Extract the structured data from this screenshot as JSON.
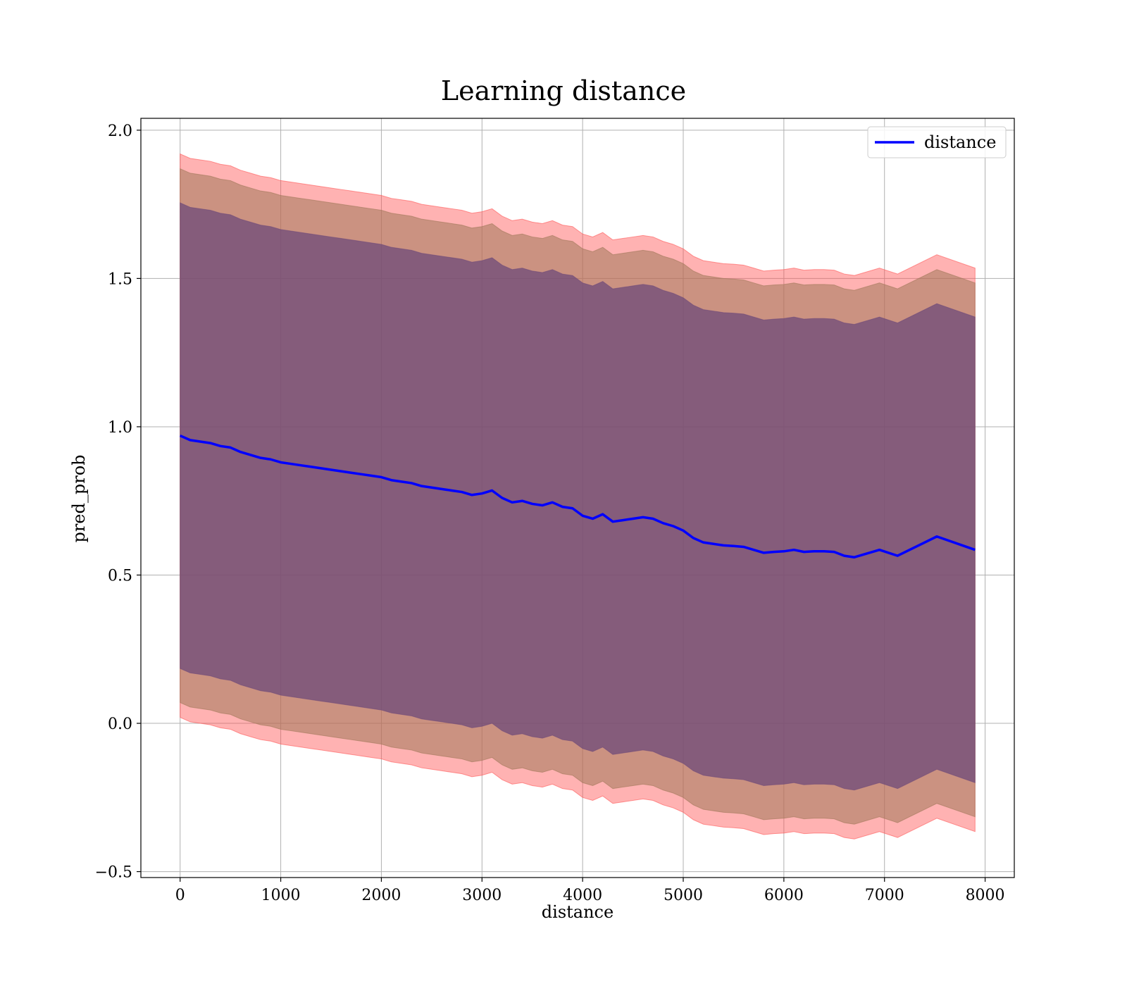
{
  "chart_data": {
    "type": "line",
    "title": "Learning distance",
    "xlabel": "distance",
    "ylabel": "pred_prob",
    "xlim": [
      -390,
      8290
    ],
    "ylim": [
      -0.52,
      2.04
    ],
    "xticks": [
      0,
      1000,
      2000,
      3000,
      4000,
      5000,
      6000,
      7000,
      8000
    ],
    "yticks": [
      -0.5,
      0.0,
      0.5,
      1.0,
      1.5,
      2.0
    ],
    "xtick_labels": [
      "0",
      "1000",
      "2000",
      "3000",
      "4000",
      "5000",
      "6000",
      "7000",
      "8000"
    ],
    "ytick_labels": [
      "−0.5",
      "0.0",
      "0.5",
      "1.0",
      "1.5",
      "2.0"
    ],
    "grid": true,
    "legend": {
      "position": "upper right",
      "entries": [
        "distance"
      ]
    },
    "colors": {
      "line": "#0000ff",
      "band_outer": "#ff5555",
      "band_middle": "#a0785a",
      "band_inner": "#6e4a7a"
    },
    "series": [
      {
        "name": "distance",
        "x": [
          0,
          100,
          200,
          300,
          400,
          500,
          600,
          700,
          800,
          900,
          1000,
          1100,
          1200,
          1300,
          1400,
          1500,
          1600,
          1700,
          1800,
          1900,
          2000,
          2100,
          2200,
          2300,
          2400,
          2500,
          2600,
          2700,
          2800,
          2900,
          3000,
          3100,
          3200,
          3300,
          3400,
          3500,
          3600,
          3700,
          3800,
          3900,
          4000,
          4100,
          4200,
          4300,
          4400,
          4500,
          4600,
          4700,
          4800,
          4900,
          5000,
          5100,
          5200,
          5300,
          5400,
          5500,
          5600,
          5700,
          5800,
          5900,
          6000,
          6100,
          6200,
          6300,
          6400,
          6500,
          6600,
          6700,
          6950,
          7130,
          7520,
          7900
        ],
        "y": [
          0.97,
          0.955,
          0.95,
          0.945,
          0.935,
          0.93,
          0.915,
          0.905,
          0.895,
          0.89,
          0.88,
          0.875,
          0.87,
          0.865,
          0.86,
          0.855,
          0.85,
          0.845,
          0.84,
          0.835,
          0.83,
          0.82,
          0.815,
          0.81,
          0.8,
          0.795,
          0.79,
          0.785,
          0.78,
          0.77,
          0.775,
          0.785,
          0.76,
          0.745,
          0.75,
          0.74,
          0.735,
          0.745,
          0.73,
          0.725,
          0.7,
          0.69,
          0.705,
          0.68,
          0.685,
          0.69,
          0.695,
          0.69,
          0.675,
          0.665,
          0.65,
          0.625,
          0.61,
          0.605,
          0.6,
          0.598,
          0.595,
          0.585,
          0.575,
          0.578,
          0.58,
          0.585,
          0.578,
          0.58,
          0.58,
          0.578,
          0.565,
          0.56,
          0.585,
          0.565,
          0.63,
          0.585
        ]
      }
    ],
    "bands": [
      {
        "name": "outer",
        "halfwidth": 0.95
      },
      {
        "name": "middle",
        "halfwidth": 0.9
      },
      {
        "name": "inner",
        "halfwidth": 0.785
      }
    ]
  }
}
